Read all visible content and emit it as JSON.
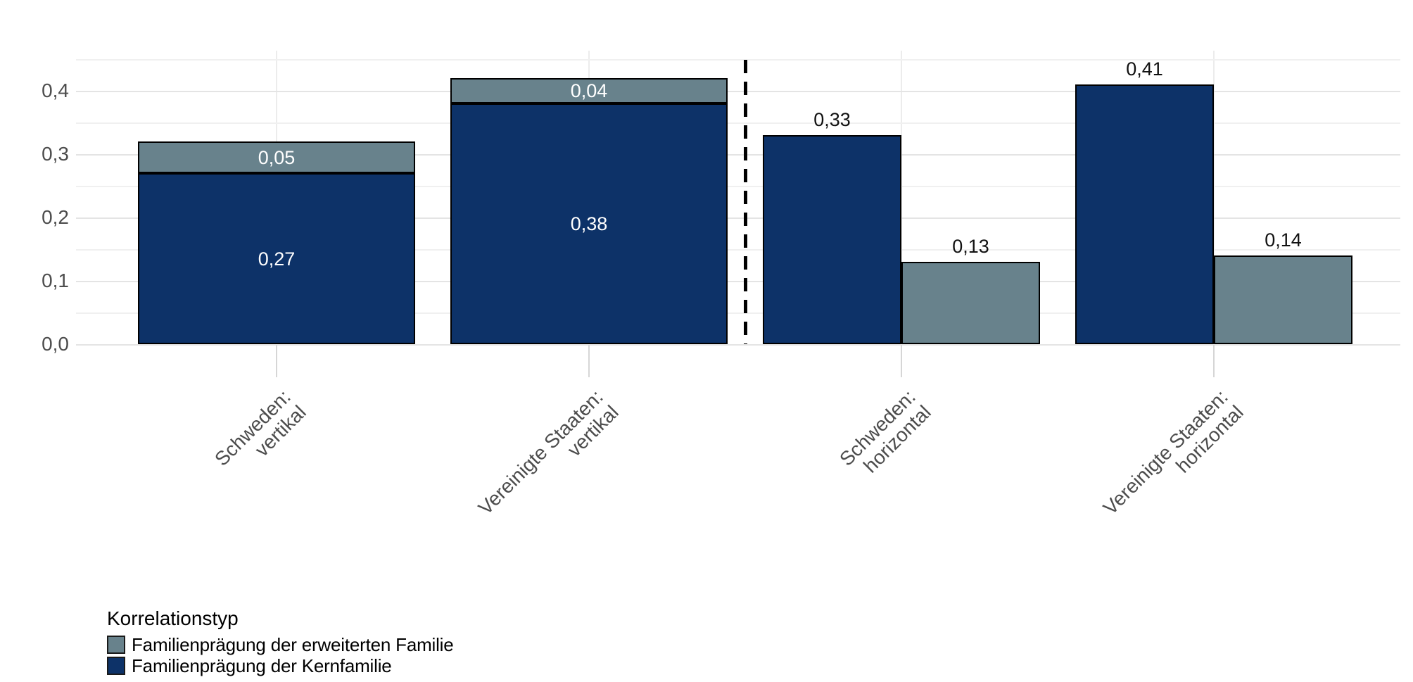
{
  "chart_data": {
    "type": "bar",
    "title": "",
    "categories": [
      "Schweden: vertikal",
      "Vereinigte Staaten: vertikal",
      "Schweden: horizontal",
      "Vereinigte Staaten: horizontal"
    ],
    "category_label_lines": [
      [
        "Schweden:",
        "vertikal"
      ],
      [
        "Vereinigte Staaten:",
        "vertikal"
      ],
      [
        "Schweden:",
        "horizontal"
      ],
      [
        "Vereinigte Staaten:",
        "horizontal"
      ]
    ],
    "group_modes": [
      "stacked",
      "stacked",
      "dodged",
      "dodged"
    ],
    "series": [
      {
        "name": "Familienprägung der Kernfamilie",
        "color": "#0D3268",
        "values": [
          0.27,
          0.38,
          0.33,
          0.41
        ],
        "value_labels": [
          "0,27",
          "0,38",
          "0,33",
          "0,41"
        ]
      },
      {
        "name": "Familienprägung der erweiterten Familie",
        "color": "#68828C",
        "values": [
          0.05,
          0.04,
          0.13,
          0.14
        ],
        "value_labels": [
          "0,05",
          "0,04",
          "0,13",
          "0,14"
        ]
      }
    ],
    "value_label_style": {
      "stacked": "inside-white",
      "dodged": "above-black"
    },
    "y_axis": {
      "ticks": [
        {
          "value": 0.0,
          "label": "0,0"
        },
        {
          "value": 0.1,
          "label": "0,1"
        },
        {
          "value": 0.2,
          "label": "0,2"
        },
        {
          "value": 0.3,
          "label": "0,3"
        },
        {
          "value": 0.4,
          "label": "0,4"
        }
      ],
      "minor_tick_values": [
        0.05,
        0.15,
        0.25,
        0.35,
        0.45
      ],
      "ylim": [
        0,
        0.465
      ],
      "grid": true
    },
    "divider": {
      "type": "dashed-vertical-line",
      "after_category_index": 1,
      "color": "#000000"
    },
    "legend": {
      "title": "Korrelationstyp",
      "position": "bottom-left",
      "items": [
        {
          "label": "Familienprägung der erweiterten Familie",
          "color": "#68828C"
        },
        {
          "label": "Familienprägung der Kernfamilie",
          "color": "#0D3268"
        }
      ]
    },
    "style": {
      "background": "#FFFFFF",
      "bar_border_color": "#000000",
      "axis_text_color": "#4D4D4D",
      "grid_major_color": "#E4E4E4",
      "grid_minor_color": "#F0F0F0",
      "tick_color": "#D6D6D6",
      "inside_label_color": "#FFFFFF",
      "outside_label_color": "#111111"
    }
  }
}
